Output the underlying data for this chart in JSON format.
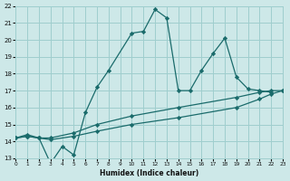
{
  "xlabel": "Humidex (Indice chaleur)",
  "xlim": [
    0,
    23
  ],
  "ylim": [
    13,
    22
  ],
  "xticks": [
    0,
    1,
    2,
    3,
    4,
    5,
    6,
    7,
    8,
    9,
    10,
    11,
    12,
    13,
    14,
    15,
    16,
    17,
    18,
    19,
    20,
    21,
    22,
    23
  ],
  "yticks": [
    13,
    14,
    15,
    16,
    17,
    18,
    19,
    20,
    21,
    22
  ],
  "bg_color": "#cde8e8",
  "grid_color": "#9fcece",
  "line_color": "#1a6b6b",
  "line1_x": [
    0,
    1,
    2,
    3,
    4,
    5,
    6,
    7,
    8,
    10,
    11,
    12,
    13,
    14,
    15,
    16,
    17,
    18,
    19,
    20,
    21,
    22
  ],
  "line1_y": [
    14.2,
    14.4,
    14.2,
    12.7,
    13.7,
    13.2,
    15.7,
    17.2,
    18.2,
    20.4,
    20.5,
    21.8,
    21.3,
    17.0,
    17.0,
    18.2,
    19.2,
    20.1,
    17.8,
    17.1,
    17.0,
    16.9
  ],
  "line2_x": [
    0,
    1,
    2,
    3,
    5,
    7,
    10,
    14,
    19,
    21,
    22,
    23
  ],
  "line2_y": [
    14.2,
    14.3,
    14.2,
    14.2,
    14.5,
    15.0,
    15.5,
    16.0,
    16.6,
    16.9,
    17.0,
    17.0
  ],
  "line3_x": [
    0,
    1,
    2,
    3,
    5,
    7,
    10,
    14,
    19,
    21,
    22,
    23
  ],
  "line3_y": [
    14.2,
    14.3,
    14.2,
    14.1,
    14.3,
    14.6,
    15.0,
    15.4,
    16.0,
    16.5,
    16.8,
    17.0
  ]
}
